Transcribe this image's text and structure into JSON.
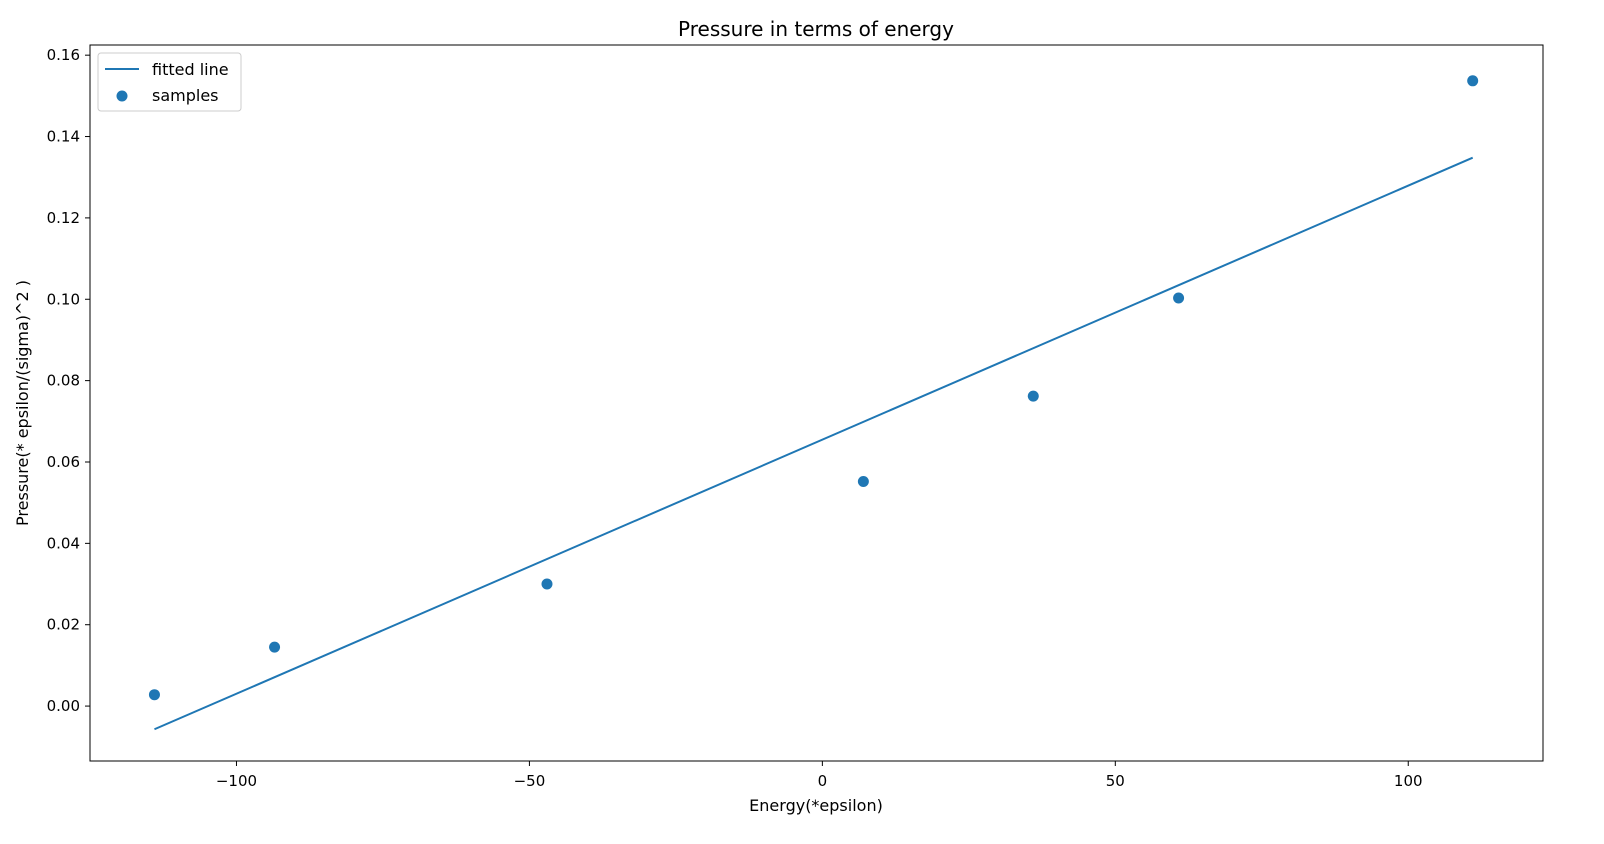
{
  "chart_data": {
    "type": "scatter",
    "title": "Pressure in terms of energy",
    "xlabel": "Energy(*epsilon)",
    "ylabel": "Pressure(*  epsilon/(sigma)^2  )",
    "xlim": [
      -125,
      123
    ],
    "ylim": [
      -0.0135,
      0.1625
    ],
    "xticks": [
      {
        "value": -100,
        "label": "−100"
      },
      {
        "value": -50,
        "label": "−50"
      },
      {
        "value": 0,
        "label": "0"
      },
      {
        "value": 50,
        "label": "50"
      },
      {
        "value": 100,
        "label": "100"
      }
    ],
    "yticks": [
      {
        "value": 0.0,
        "label": "0.00"
      },
      {
        "value": 0.02,
        "label": "0.02"
      },
      {
        "value": 0.04,
        "label": "0.04"
      },
      {
        "value": 0.06,
        "label": "0.06"
      },
      {
        "value": 0.08,
        "label": "0.08"
      },
      {
        "value": 0.1,
        "label": "0.10"
      },
      {
        "value": 0.12,
        "label": "0.12"
      },
      {
        "value": 0.14,
        "label": "0.14"
      },
      {
        "value": 0.16,
        "label": "0.16"
      }
    ],
    "grid": false,
    "legend_position": "top-left",
    "color": "#1f77b4",
    "series": [
      {
        "name": "fitted line",
        "type": "line",
        "x": [
          -114,
          111
        ],
        "y": [
          -0.0057,
          0.1348
        ]
      },
      {
        "name": "samples",
        "type": "scatter",
        "x": [
          -114,
          -93.5,
          -47,
          7,
          36,
          60.8,
          111
        ],
        "y": [
          0.0028,
          0.0145,
          0.03,
          0.0552,
          0.0762,
          0.1003,
          0.1537
        ]
      }
    ]
  }
}
